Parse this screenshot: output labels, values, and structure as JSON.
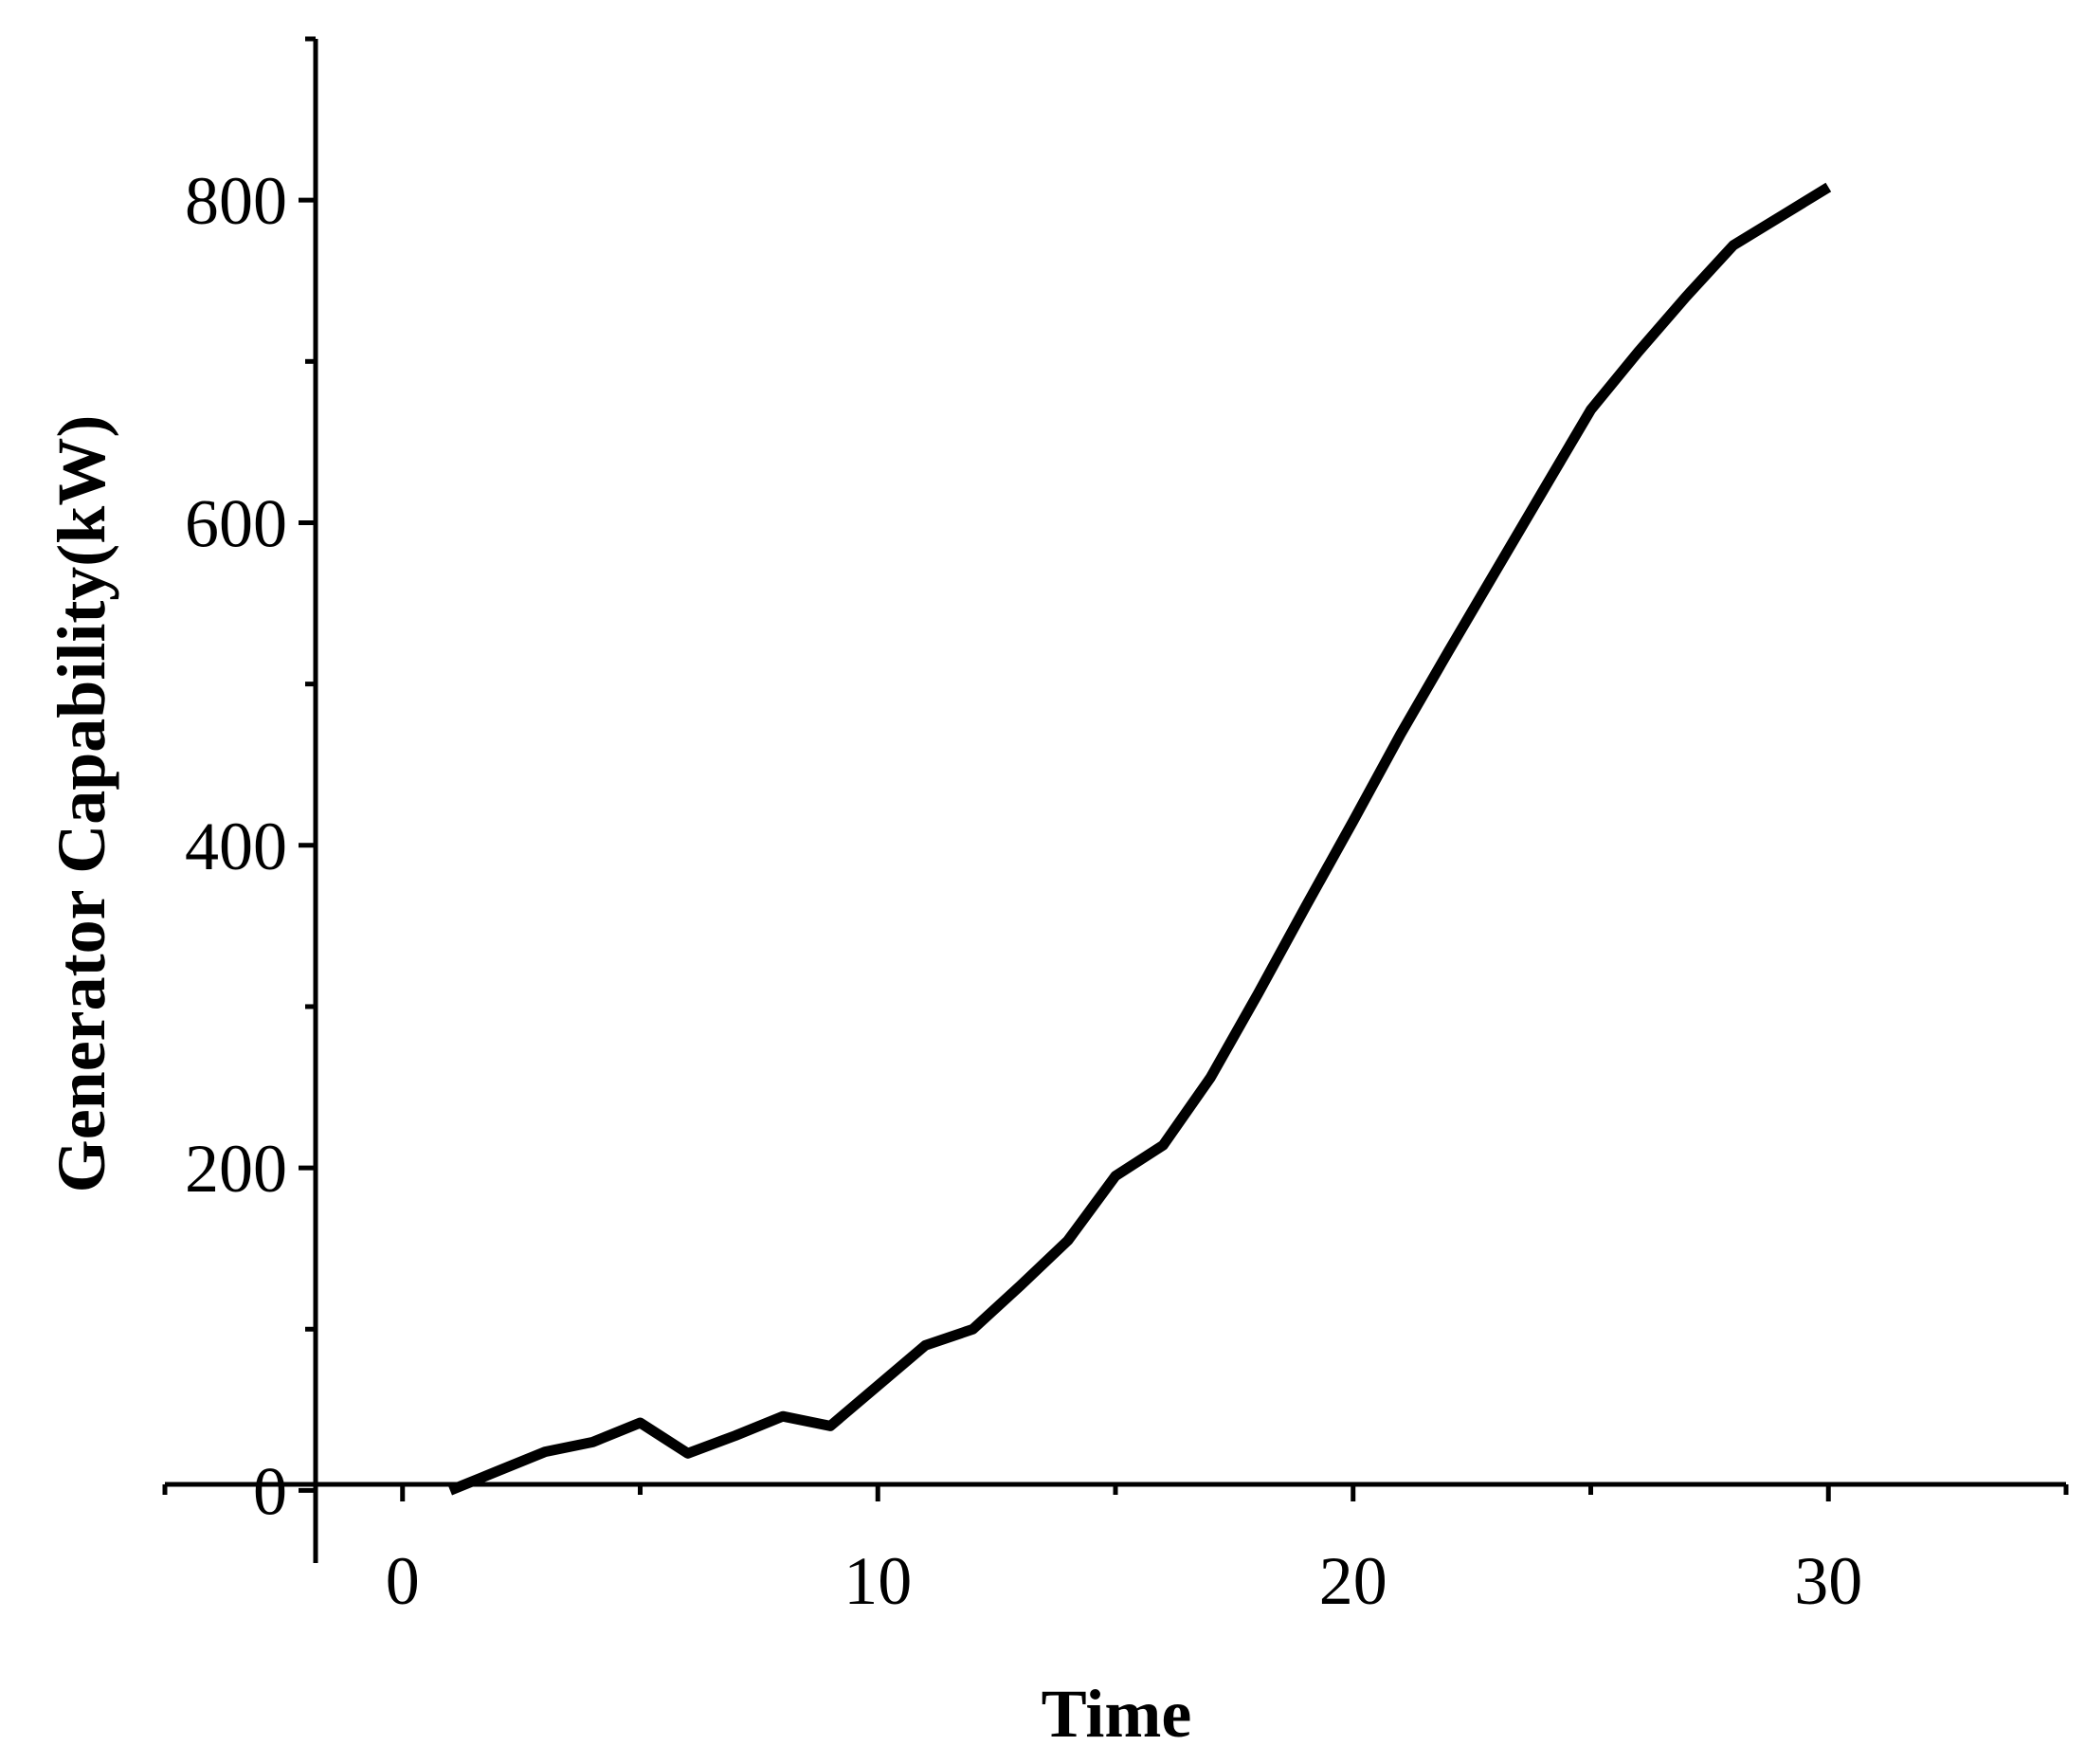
{
  "chart_data": {
    "type": "line",
    "title": "",
    "xlabel": "Time",
    "ylabel": "Generator Capability(kW)",
    "xlim": [
      -5,
      35
    ],
    "ylim": [
      -45,
      900
    ],
    "x_major_ticks": [
      0,
      10,
      20,
      30
    ],
    "x_tick_labels": [
      "0",
      "10",
      "20",
      "30"
    ],
    "x_minor_ticks": [
      -5,
      5,
      15,
      25,
      35
    ],
    "y_major_ticks": [
      0,
      200,
      400,
      600,
      800
    ],
    "y_tick_labels": [
      "0",
      "200",
      "400",
      "600",
      "800"
    ],
    "y_minor_ticks": [
      100,
      300,
      500,
      700,
      900
    ],
    "grid": false,
    "line_color": "#000000",
    "series": [
      {
        "x": [
          1,
          2,
          3,
          4,
          5,
          6,
          7,
          8,
          9,
          10,
          11,
          12,
          13,
          14,
          15,
          16,
          17,
          18,
          19,
          20,
          21,
          22,
          23,
          24,
          25,
          26,
          27,
          28,
          29,
          30
        ],
        "values": [
          0,
          12,
          24,
          30,
          42,
          23,
          34,
          46,
          40,
          65,
          90,
          100,
          127,
          155,
          195,
          214,
          256,
          308,
          362,
          415,
          469,
          520,
          570,
          620,
          670,
          706,
          740,
          772,
          790,
          808
        ]
      }
    ]
  }
}
